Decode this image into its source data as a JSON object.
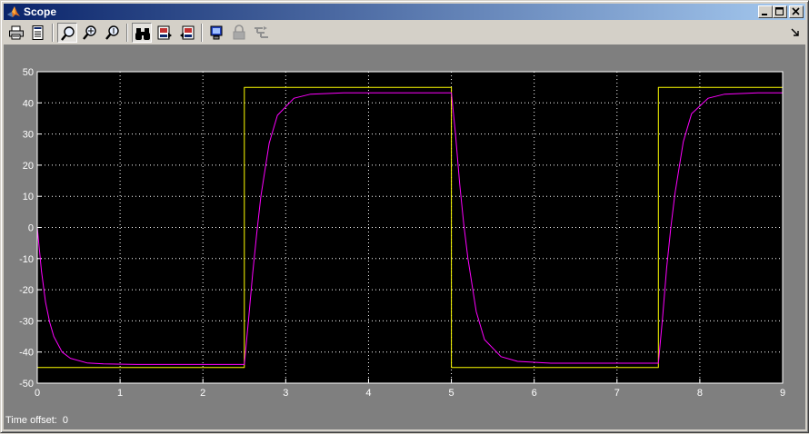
{
  "window": {
    "title": "Scope",
    "buttons": [
      "minimize",
      "maximize",
      "close"
    ]
  },
  "toolbar": {
    "tools": [
      {
        "name": "print-icon",
        "label": "Print",
        "enabled": true,
        "pressed": false
      },
      {
        "name": "parameters-icon",
        "label": "Parameters",
        "enabled": true,
        "pressed": false
      },
      {
        "name": "zoom-icon",
        "label": "Zoom",
        "enabled": true,
        "pressed": true
      },
      {
        "name": "zoom-x-icon",
        "label": "Zoom X-axis",
        "enabled": true,
        "pressed": false
      },
      {
        "name": "zoom-y-icon",
        "label": "Zoom Y-axis",
        "enabled": true,
        "pressed": false
      },
      {
        "name": "autoscale-binoculars-icon",
        "label": "Autoscale",
        "enabled": true,
        "pressed": true
      },
      {
        "name": "save-axes-icon",
        "label": "Save axes settings",
        "enabled": true,
        "pressed": false
      },
      {
        "name": "restore-axes-icon",
        "label": "Restore axes settings",
        "enabled": true,
        "pressed": false
      },
      {
        "name": "floating-scope-icon",
        "label": "Floating scope",
        "enabled": true,
        "pressed": false
      },
      {
        "name": "lock-icon",
        "label": "Lock axes selection",
        "enabled": false,
        "pressed": false
      },
      {
        "name": "signal-selection-icon",
        "label": "Signal selection",
        "enabled": false,
        "pressed": false
      }
    ]
  },
  "status": {
    "time_offset_label": "Time offset:",
    "time_offset_value": "0"
  },
  "colors": {
    "background": "#7f7f7f",
    "axes": "#000000",
    "grid": "#ffffff",
    "series_1": "#ffff00",
    "series_2": "#ff00ff"
  },
  "chart_data": {
    "type": "line",
    "title": "",
    "xlabel": "",
    "ylabel": "",
    "xlim": [
      0,
      9
    ],
    "ylim": [
      -50,
      50
    ],
    "xticks": [
      0,
      1,
      2,
      3,
      4,
      5,
      6,
      7,
      8,
      9
    ],
    "yticks": [
      -50,
      -40,
      -30,
      -20,
      -10,
      0,
      10,
      20,
      30,
      40,
      50
    ],
    "grid": true,
    "legend": "none",
    "series": [
      {
        "color": "#ffff00",
        "x": [
          0,
          2.5,
          2.5,
          5,
          5,
          7.5,
          7.5,
          9
        ],
        "y": [
          -45,
          -45,
          45,
          45,
          -45,
          -45,
          45,
          45
        ]
      },
      {
        "color": "#ff00ff",
        "x": [
          0,
          0.05,
          0.1,
          0.15,
          0.2,
          0.3,
          0.4,
          0.6,
          0.8,
          1.2,
          2.5,
          2.55,
          2.6,
          2.65,
          2.7,
          2.8,
          2.9,
          3.1,
          3.3,
          3.7,
          5,
          5.05,
          5.1,
          5.15,
          5.2,
          5.3,
          5.4,
          5.6,
          5.8,
          6.2,
          7.5,
          7.55,
          7.6,
          7.65,
          7.7,
          7.8,
          7.9,
          8.1,
          8.3,
          8.7,
          9
        ],
        "y": [
          0,
          -14,
          -24,
          -30.5,
          -35,
          -40,
          -42,
          -43.5,
          -43.8,
          -44,
          -44,
          -30,
          -15,
          -2,
          10,
          27,
          36,
          41.5,
          42.8,
          43.2,
          43.2,
          30,
          14,
          1,
          -10,
          -27,
          -36,
          -41.5,
          -43,
          -43.6,
          -43.6,
          -29,
          -13,
          0,
          11,
          27.5,
          36.5,
          41.5,
          42.8,
          43.2,
          43.2
        ]
      }
    ]
  }
}
